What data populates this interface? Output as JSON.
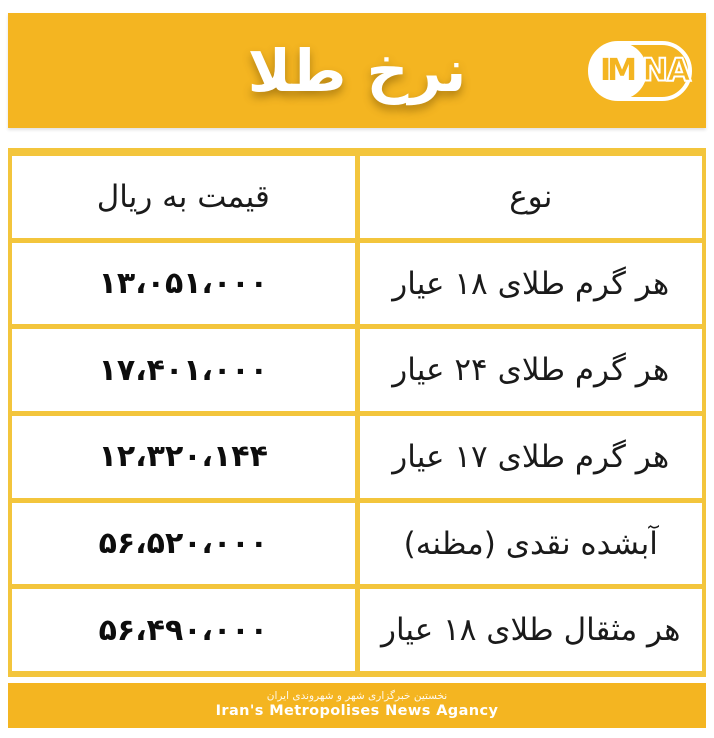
{
  "header": {
    "title": "نرخ طلا",
    "logo": {
      "name": "imna-logo",
      "im": "IM",
      "na": "NA"
    }
  },
  "table": {
    "columns": {
      "price": "قیمت به ریال",
      "type": "نوع"
    },
    "rows": [
      {
        "type": "هر گرم طلای ۱۸ عیار",
        "price": "۱۳،۰۵۱،۰۰۰"
      },
      {
        "type": "هر گرم طلای ۲۴ عیار",
        "price": "۱۷،۴۰۱،۰۰۰"
      },
      {
        "type": "هر گرم طلای ۱۷ عیار",
        "price": "۱۲،۳۲۰،۱۴۴"
      },
      {
        "type": "آبشده نقدی (مظنه)",
        "price": "۵۶،۵۲۰،۰۰۰"
      },
      {
        "type": "هر مثقال طلای ۱۸ عیار",
        "price": "۵۶،۴۹۰،۰۰۰"
      }
    ]
  },
  "footer": {
    "tagline_fa": "نخستین خبرگزاری شهر و شهروندی ایران",
    "tagline_en": "Iran's Metropolises News Agancy"
  },
  "colors": {
    "brand_yellow": "#F4B521",
    "grid_yellow": "#F3C53C",
    "text_dark": "#141414",
    "background": "#FFFFFF"
  }
}
